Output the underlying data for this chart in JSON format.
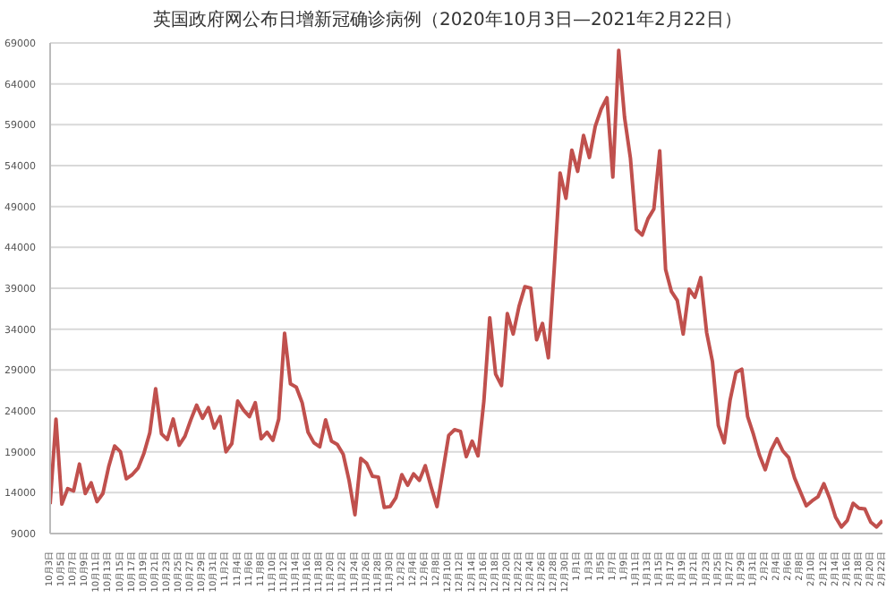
{
  "chart_data": {
    "type": "line",
    "title": "英国政府网公布日增新冠确诊病例（2020年10月3日—2021年2月22日）",
    "x": [
      "2020-10-03",
      "2020-10-04",
      "2020-10-05",
      "2020-10-06",
      "2020-10-07",
      "2020-10-08",
      "2020-10-09",
      "2020-10-10",
      "2020-10-11",
      "2020-10-12",
      "2020-10-13",
      "2020-10-14",
      "2020-10-15",
      "2020-10-16",
      "2020-10-17",
      "2020-10-18",
      "2020-10-19",
      "2020-10-20",
      "2020-10-21",
      "2020-10-22",
      "2020-10-23",
      "2020-10-24",
      "2020-10-25",
      "2020-10-26",
      "2020-10-27",
      "2020-10-28",
      "2020-10-29",
      "2020-10-30",
      "2020-10-31",
      "2020-11-01",
      "2020-11-02",
      "2020-11-03",
      "2020-11-04",
      "2020-11-05",
      "2020-11-06",
      "2020-11-07",
      "2020-11-08",
      "2020-11-09",
      "2020-11-10",
      "2020-11-11",
      "2020-11-12",
      "2020-11-13",
      "2020-11-14",
      "2020-11-15",
      "2020-11-16",
      "2020-11-17",
      "2020-11-18",
      "2020-11-19",
      "2020-11-20",
      "2020-11-21",
      "2020-11-22",
      "2020-11-23",
      "2020-11-24",
      "2020-11-25",
      "2020-11-26",
      "2020-11-27",
      "2020-11-28",
      "2020-11-29",
      "2020-11-30",
      "2020-12-01",
      "2020-12-02",
      "2020-12-03",
      "2020-12-04",
      "2020-12-05",
      "2020-12-06",
      "2020-12-07",
      "2020-12-08",
      "2020-12-09",
      "2020-12-10",
      "2020-12-11",
      "2020-12-12",
      "2020-12-13",
      "2020-12-14",
      "2020-12-15",
      "2020-12-16",
      "2020-12-17",
      "2020-12-18",
      "2020-12-19",
      "2020-12-20",
      "2020-12-21",
      "2020-12-22",
      "2020-12-23",
      "2020-12-24",
      "2020-12-25",
      "2020-12-26",
      "2020-12-27",
      "2020-12-28",
      "2020-12-29",
      "2020-12-30",
      "2020-12-31",
      "2021-01-01",
      "2021-01-02",
      "2021-01-03",
      "2021-01-04",
      "2021-01-05",
      "2021-01-06",
      "2021-01-07",
      "2021-01-08",
      "2021-01-09",
      "2021-01-10",
      "2021-01-11",
      "2021-01-12",
      "2021-01-13",
      "2021-01-14",
      "2021-01-15",
      "2021-01-16",
      "2021-01-17",
      "2021-01-18",
      "2021-01-19",
      "2021-01-20",
      "2021-01-21",
      "2021-01-22",
      "2021-01-23",
      "2021-01-24",
      "2021-01-25",
      "2021-01-26",
      "2021-01-27",
      "2021-01-28",
      "2021-01-29",
      "2021-01-30",
      "2021-01-31",
      "2021-02-01",
      "2021-02-02",
      "2021-02-03",
      "2021-02-04",
      "2021-02-05",
      "2021-02-06",
      "2021-02-07",
      "2021-02-08",
      "2021-02-09",
      "2021-02-10",
      "2021-02-11",
      "2021-02-12",
      "2021-02-13",
      "2021-02-14",
      "2021-02-15",
      "2021-02-16",
      "2021-02-17",
      "2021-02-18",
      "2021-02-19",
      "2021-02-20",
      "2021-02-21",
      "2021-02-22"
    ],
    "series": [
      {
        "color": "#c0504d",
        "values": [
          12600,
          23000,
          12600,
          14500,
          14200,
          17500,
          13900,
          15200,
          12900,
          13900,
          17200,
          19700,
          19000,
          15700,
          16200,
          17000,
          18800,
          21300,
          26700,
          21200,
          20500,
          23000,
          19800,
          20900,
          22900,
          24700,
          23100,
          24400,
          21900,
          23300,
          19000,
          20000,
          25200,
          24100,
          23300,
          25000,
          20600,
          21400,
          20400,
          23000,
          33500,
          27300,
          26900,
          25000,
          21400,
          20100,
          19600,
          22900,
          20300,
          19900,
          18700,
          15500,
          11300,
          18200,
          17600,
          16000,
          15900,
          12200,
          12300,
          13400,
          16200,
          14900,
          16300,
          15500,
          17300,
          14700,
          12300,
          16600,
          21000,
          21700,
          21500,
          18400,
          20300,
          18500,
          25200,
          35400,
          28500,
          27100,
          35900,
          33400,
          36800,
          39200,
          39000,
          32700,
          34700,
          30500,
          41400,
          53100,
          50000,
          55900,
          53300,
          57700,
          55000,
          58800,
          60900,
          62300,
          52600,
          68100,
          59900,
          54900,
          46200,
          45500,
          47500,
          48700,
          55800,
          41300,
          38600,
          37500,
          33400,
          38900,
          37900,
          40300,
          33600,
          30000,
          22200,
          20100,
          25300,
          28700,
          29100,
          23300,
          21100,
          18600,
          16800,
          19200,
          20600,
          19100,
          18300,
          15800,
          14100,
          12400,
          13000,
          13500,
          15100,
          13300,
          11000,
          9800,
          10600,
          12700,
          12100,
          12000,
          10400,
          9800,
          10600
        ]
      }
    ],
    "xlim": [
      "2020-10-03",
      "2021-02-22"
    ],
    "xticks": [
      {
        "value": "2020-10-03",
        "label": "10月3日"
      },
      {
        "value": "2020-10-05",
        "label": "10月5日"
      },
      {
        "value": "2020-10-07",
        "label": "10月7日"
      },
      {
        "value": "2020-10-09",
        "label": "10月9日"
      },
      {
        "value": "2020-10-11",
        "label": "10月11日"
      },
      {
        "value": "2020-10-13",
        "label": "10月13日"
      },
      {
        "value": "2020-10-15",
        "label": "10月15日"
      },
      {
        "value": "2020-10-17",
        "label": "10月17日"
      },
      {
        "value": "2020-10-19",
        "label": "10月19日"
      },
      {
        "value": "2020-10-21",
        "label": "10月21日"
      },
      {
        "value": "2020-10-23",
        "label": "10月23日"
      },
      {
        "value": "2020-10-25",
        "label": "10月25日"
      },
      {
        "value": "2020-10-27",
        "label": "10月27日"
      },
      {
        "value": "2020-10-29",
        "label": "10月29日"
      },
      {
        "value": "2020-10-31",
        "label": "10月31日"
      },
      {
        "value": "2020-11-02",
        "label": "11月2日"
      },
      {
        "value": "2020-11-04",
        "label": "11月4日"
      },
      {
        "value": "2020-11-06",
        "label": "11月6日"
      },
      {
        "value": "2020-11-08",
        "label": "11月8日"
      },
      {
        "value": "2020-11-10",
        "label": "11月10日"
      },
      {
        "value": "2020-11-12",
        "label": "11月12日"
      },
      {
        "value": "2020-11-14",
        "label": "11月14日"
      },
      {
        "value": "2020-11-16",
        "label": "11月16日"
      },
      {
        "value": "2020-11-18",
        "label": "11月18日"
      },
      {
        "value": "2020-11-20",
        "label": "11月20日"
      },
      {
        "value": "2020-11-22",
        "label": "11月22日"
      },
      {
        "value": "2020-11-24",
        "label": "11月24日"
      },
      {
        "value": "2020-11-26",
        "label": "11月26日"
      },
      {
        "value": "2020-11-28",
        "label": "11月28日"
      },
      {
        "value": "2020-11-30",
        "label": "11月30日"
      },
      {
        "value": "2020-12-02",
        "label": "12月2日"
      },
      {
        "value": "2020-12-04",
        "label": "12月4日"
      },
      {
        "value": "2020-12-06",
        "label": "12月6日"
      },
      {
        "value": "2020-12-08",
        "label": "12月8日"
      },
      {
        "value": "2020-12-10",
        "label": "12月10日"
      },
      {
        "value": "2020-12-12",
        "label": "12月12日"
      },
      {
        "value": "2020-12-14",
        "label": "12月14日"
      },
      {
        "value": "2020-12-16",
        "label": "12月16日"
      },
      {
        "value": "2020-12-18",
        "label": "12月18日"
      },
      {
        "value": "2020-12-20",
        "label": "12月20日"
      },
      {
        "value": "2020-12-22",
        "label": "12月22日"
      },
      {
        "value": "2020-12-24",
        "label": "12月24日"
      },
      {
        "value": "2020-12-26",
        "label": "12月26日"
      },
      {
        "value": "2020-12-28",
        "label": "12月28日"
      },
      {
        "value": "2020-12-30",
        "label": "12月30日"
      },
      {
        "value": "2021-01-01",
        "label": "1月1日"
      },
      {
        "value": "2021-01-03",
        "label": "1月3日"
      },
      {
        "value": "2021-01-05",
        "label": "1月5日"
      },
      {
        "value": "2021-01-07",
        "label": "1月7日"
      },
      {
        "value": "2021-01-09",
        "label": "1月9日"
      },
      {
        "value": "2021-01-11",
        "label": "1月11日"
      },
      {
        "value": "2021-01-13",
        "label": "1月13日"
      },
      {
        "value": "2021-01-15",
        "label": "1月15日"
      },
      {
        "value": "2021-01-17",
        "label": "1月17日"
      },
      {
        "value": "2021-01-19",
        "label": "1月19日"
      },
      {
        "value": "2021-01-21",
        "label": "1月21日"
      },
      {
        "value": "2021-01-23",
        "label": "1月23日"
      },
      {
        "value": "2021-01-25",
        "label": "1月25日"
      },
      {
        "value": "2021-01-27",
        "label": "1月27日"
      },
      {
        "value": "2021-01-29",
        "label": "1月29日"
      },
      {
        "value": "2021-01-31",
        "label": "1月31日"
      },
      {
        "value": "2021-02-02",
        "label": "2月2日"
      },
      {
        "value": "2021-02-04",
        "label": "2月4日"
      },
      {
        "value": "2021-02-06",
        "label": "2月6日"
      },
      {
        "value": "2021-02-08",
        "label": "2月8日"
      },
      {
        "value": "2021-02-10",
        "label": "2月10日"
      },
      {
        "value": "2021-02-12",
        "label": "2月12日"
      },
      {
        "value": "2021-02-14",
        "label": "2月14日"
      },
      {
        "value": "2021-02-16",
        "label": "2月16日"
      },
      {
        "value": "2021-02-18",
        "label": "2月18日"
      },
      {
        "value": "2021-02-20",
        "label": "2月20日"
      },
      {
        "value": "2021-02-22",
        "label": "2月22日"
      }
    ],
    "ylim": [
      9000,
      69000
    ],
    "yticks": [
      9000,
      14000,
      19000,
      24000,
      29000,
      34000,
      39000,
      44000,
      49000,
      54000,
      59000,
      64000,
      69000
    ],
    "grid": "y",
    "marker": "none",
    "line_style": "solid"
  }
}
